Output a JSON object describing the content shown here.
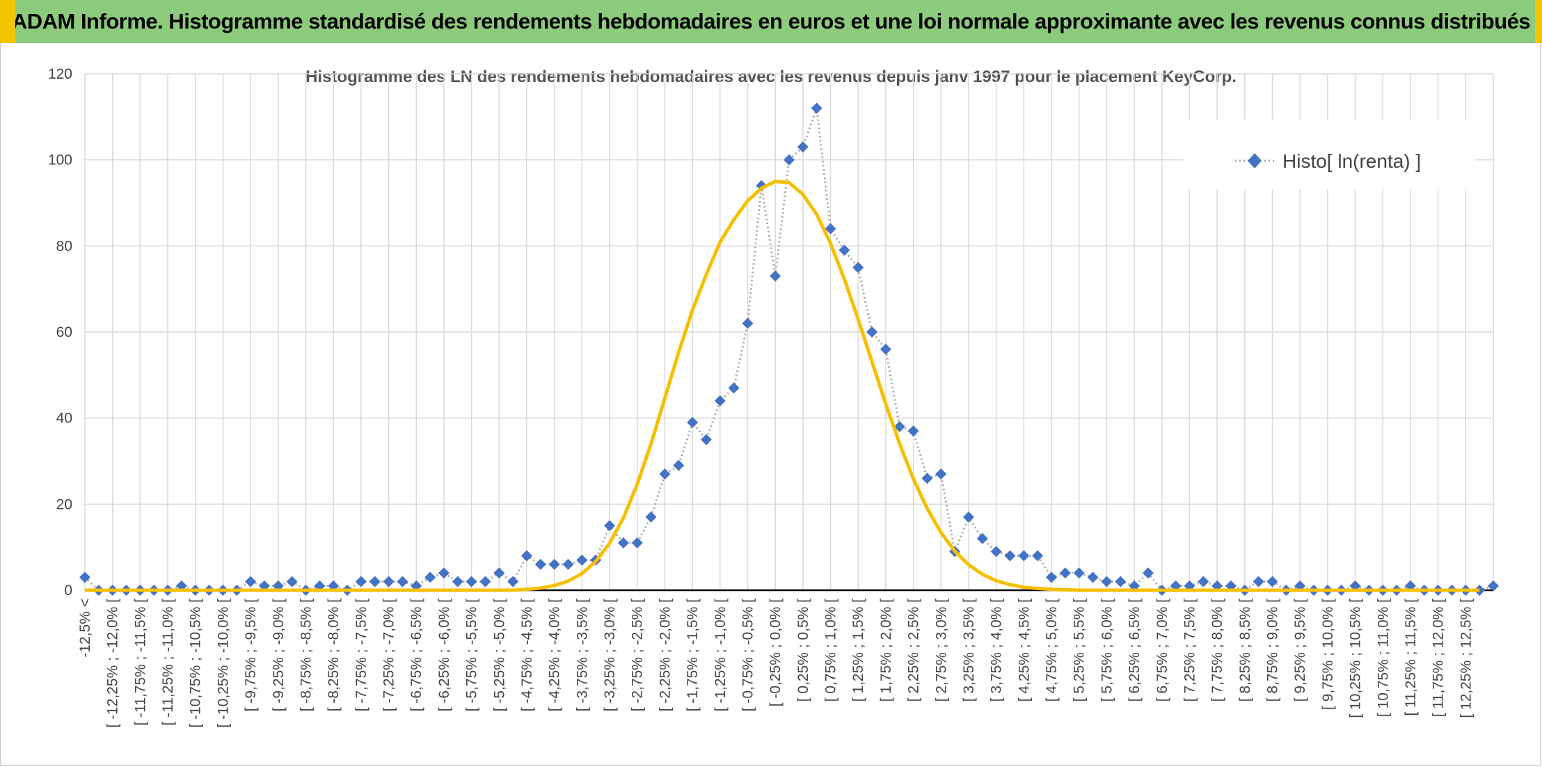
{
  "banner": {
    "title": "ADAM Informe. Histogramme standardisé des rendements hebdomadaires en euros et une loi normale approximante avec les revenus connus distribués"
  },
  "colors": {
    "banner_bg": "#8ccb7c",
    "banner_accent": "#f5c400",
    "series_marker": "#4472c4",
    "series_line": "#a6a6a6",
    "normal_curve": "#f5c000",
    "grid": "#d9d9d9"
  },
  "chart_data": {
    "type": "line",
    "title": "Histogramme des LN des rendements hebdomadaires avec les revenus depuis janv 1997 pour le placement KeyCorp.",
    "xlabel": "",
    "ylabel": "",
    "ylim": [
      0,
      120
    ],
    "yticks": [
      0,
      20,
      40,
      60,
      80,
      100,
      120
    ],
    "grid": true,
    "legend_position": "top-right",
    "x_tick_labels": [
      "-12,5% <",
      "[ -12,25% ; -12,0% [",
      "[ -11,75% ; -11,5% [",
      "[ -11,25% ; -11,0% [",
      "[ -10,75% ; -10,5% [",
      "[ -10,25% ; -10,0% [",
      "[ -9,75% ; -9,5% [",
      "[ -9,25% ; -9,0% [",
      "[ -8,75% ; -8,5% [",
      "[ -8,25% ; -8,0% [",
      "[ -7,75% ; -7,5% [",
      "[ -7,25% ; -7,0% [",
      "[ -6,75% ; -6,5% [",
      "[ -6,25% ; -6,0% [",
      "[ -5,75% ; -5,5% [",
      "[ -5,25% ; -5,0% [",
      "[ -4,75% ; -4,5% [",
      "[ -4,25% ; -4,0% [",
      "[ -3,75% ; -3,5% [",
      "[ -3,25% ; -3,0% [",
      "[ -2,75% ; -2,5% [",
      "[ -2,25% ; -2,0% [",
      "[ -1,75% ; -1,5% [",
      "[ -1,25% ; -1,0% [",
      "[ -0,75% ; -0,5% [",
      "[ -0,25% ; 0,0% [",
      "[ 0,25% ; 0,5% [",
      "[ 0,75% ; 1,0% [",
      "[ 1,25% ; 1,5% [",
      "[ 1,75% ; 2,0% [",
      "[ 2,25% ; 2,5% [",
      "[ 2,75% ; 3,0% [",
      "[ 3,25% ; 3,5% [",
      "[ 3,75% ; 4,0% [",
      "[ 4,25% ; 4,5% [",
      "[ 4,75% ; 5,0% [",
      "[ 5,25% ; 5,5% [",
      "[ 5,75% ; 6,0% [",
      "[ 6,25% ; 6,5% [",
      "[ 6,75% ; 7,0% [",
      "[ 7,25% ; 7,5% [",
      "[ 7,75% ; 8,0% [",
      "[ 8,25% ; 8,5% [",
      "[ 8,75% ; 9,0% [",
      "[ 9,25% ; 9,5% [",
      "[ 9,75% ; 10,0% [",
      "[ 10,25% ; 10,5% [",
      "[ 10,75% ; 11,0% [",
      "[ 11,25% ; 11,5% [",
      "[ 11,75% ; 12,0% [",
      "[ 12,25% ; 12,5% ["
    ],
    "series": [
      {
        "name": "Histo[ ln(renta) ]",
        "values": [
          3,
          0,
          0,
          0,
          0,
          0,
          0,
          1,
          0,
          0,
          0,
          0,
          2,
          1,
          1,
          2,
          0,
          1,
          1,
          0,
          2,
          2,
          2,
          2,
          1,
          3,
          4,
          2,
          2,
          2,
          4,
          2,
          8,
          6,
          6,
          6,
          7,
          7,
          15,
          11,
          11,
          17,
          27,
          29,
          39,
          35,
          44,
          47,
          62,
          94,
          73,
          100,
          103,
          112,
          84,
          79,
          75,
          60,
          56,
          38,
          37,
          26,
          27,
          9,
          17,
          12,
          9,
          8,
          8,
          8,
          3,
          4,
          4,
          3,
          2,
          2,
          1,
          4,
          0,
          1,
          1,
          2,
          1,
          1,
          0,
          2,
          2,
          0,
          1,
          0,
          0,
          0,
          1,
          0,
          0,
          0,
          1,
          0,
          0,
          0,
          0,
          0,
          1
        ]
      },
      {
        "name": "",
        "type": "normal",
        "values": [
          0,
          0,
          0,
          0,
          0,
          0,
          0,
          0,
          0,
          0,
          0,
          0,
          0,
          0,
          0,
          0,
          0,
          0,
          0,
          0,
          0,
          0,
          0,
          0,
          0,
          0,
          0,
          0,
          0,
          0,
          0,
          0,
          0.2,
          0.5,
          1.1,
          2.1,
          3.9,
          6.7,
          10.9,
          16.8,
          24.6,
          34.0,
          44.6,
          55.3,
          65.1,
          73.3,
          80.9,
          86.1,
          90.5,
          93.4,
          95.0,
          94.7,
          92.0,
          87.3,
          80.6,
          72.3,
          63.0,
          53.1,
          43.3,
          34.1,
          25.9,
          19.0,
          13.4,
          9.1,
          5.9,
          3.7,
          2.2,
          1.3,
          0.7,
          0.4,
          0.2,
          0.1,
          0,
          0,
          0,
          0,
          0,
          0,
          0,
          0,
          0,
          0,
          0,
          0,
          0,
          0,
          0,
          0,
          0,
          0,
          0,
          0,
          0,
          0,
          0,
          0,
          0,
          0,
          0,
          0,
          0,
          0
        ]
      }
    ]
  }
}
